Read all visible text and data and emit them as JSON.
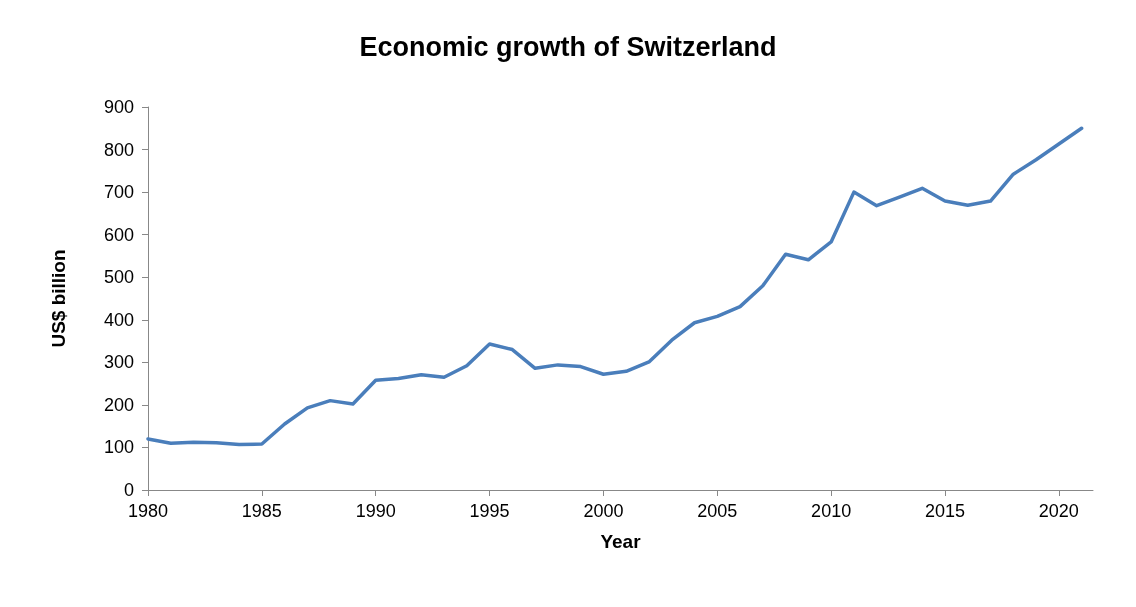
{
  "chart_data": {
    "type": "line",
    "title": "Economic growth of Switzerland",
    "xlabel": "Year",
    "ylabel": "US$ billion",
    "x": [
      1980,
      1981,
      1982,
      1983,
      1984,
      1985,
      1986,
      1987,
      1988,
      1989,
      1990,
      1991,
      1992,
      1993,
      1994,
      1995,
      1996,
      1997,
      1998,
      1999,
      2000,
      2001,
      2002,
      2003,
      2004,
      2005,
      2006,
      2007,
      2008,
      2009,
      2010,
      2011,
      2012,
      2013,
      2014,
      2015,
      2016,
      2017,
      2018,
      2019,
      2020,
      2021
    ],
    "series": [
      {
        "color": "#4a7ebb",
        "values": [
          120,
          110,
          112,
          111,
          107,
          108,
          155,
          193,
          210,
          202,
          258,
          262,
          271,
          265,
          292,
          343,
          330,
          286,
          294,
          290,
          272,
          279,
          301,
          352,
          393,
          408,
          431,
          480,
          554,
          541,
          583,
          700,
          668,
          688,
          709,
          679,
          669,
          679,
          742,
          776,
          813,
          850
        ]
      }
    ],
    "xlim": [
      1980,
      2021.5
    ],
    "xticks": [
      1980,
      1985,
      1990,
      1995,
      2000,
      2005,
      2010,
      2015,
      2020
    ],
    "ylim": [
      0,
      900
    ],
    "yticks": [
      0,
      100,
      200,
      300,
      400,
      500,
      600,
      700,
      800,
      900
    ],
    "grid": false,
    "marker": "none",
    "line_style": "solid"
  }
}
